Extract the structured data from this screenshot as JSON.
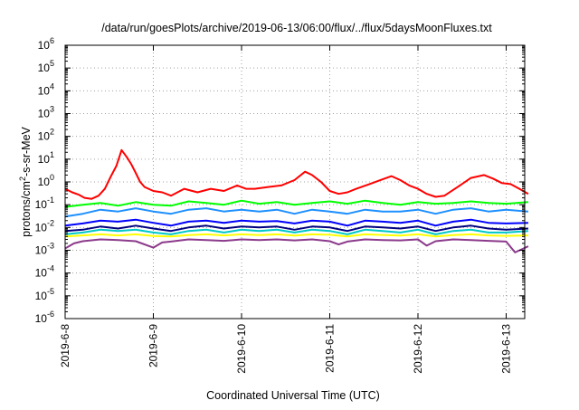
{
  "chart_data": {
    "type": "line",
    "title": "/data/run/goesPlots/archive/2019-06-13/06:00/flux/../flux/5daysMoonFluxes.txt",
    "xlabel": "Coordinated Universal Time (UTC)",
    "ylabel_parts": [
      "protons/cm",
      "2",
      "-s-sr-MeV"
    ],
    "y_scale": "log",
    "ylim": [
      1e-06,
      1000000.0
    ],
    "xlim": [
      "2019-06-08 00:00",
      "2019-06-13 06:00"
    ],
    "x_ticks": [
      "2019-6-8",
      "2019-6-9",
      "2019-6-10",
      "2019-6-11",
      "2019-6-12",
      "2019-6-13"
    ],
    "y_ticks": [
      {
        "base": "10",
        "exp": "-6"
      },
      {
        "base": "10",
        "exp": "-5"
      },
      {
        "base": "10",
        "exp": "-4"
      },
      {
        "base": "10",
        "exp": "-3"
      },
      {
        "base": "10",
        "exp": "-2"
      },
      {
        "base": "10",
        "exp": "-1"
      },
      {
        "base": "10",
        "exp": "0"
      },
      {
        "base": "10",
        "exp": "1"
      },
      {
        "base": "10",
        "exp": "2"
      },
      {
        "base": "10",
        "exp": "3"
      },
      {
        "base": "10",
        "exp": "4"
      },
      {
        "base": "10",
        "exp": "5"
      },
      {
        "base": "10",
        "exp": "6"
      }
    ],
    "grid": true,
    "legend": "none",
    "x_unit": "day (fraction since 2019-6-8 00:00 UTC)",
    "series": [
      {
        "color": "#ff0000",
        "x": [
          0.0,
          0.08,
          0.15,
          0.22,
          0.3,
          0.38,
          0.45,
          0.52,
          0.58,
          0.64,
          0.7,
          0.75,
          0.8,
          0.85,
          0.9,
          1.0,
          1.1,
          1.2,
          1.35,
          1.5,
          1.65,
          1.8,
          1.95,
          2.05,
          2.15,
          2.3,
          2.45,
          2.6,
          2.72,
          2.8,
          2.9,
          3.0,
          3.1,
          3.2,
          3.3,
          3.45,
          3.6,
          3.7,
          3.8,
          3.9,
          4.0,
          4.1,
          4.2,
          4.3,
          4.45,
          4.6,
          4.75,
          4.85,
          4.95,
          5.05,
          5.15,
          5.25
        ],
        "y": [
          0.5,
          0.35,
          0.28,
          0.2,
          0.18,
          0.25,
          0.5,
          1.8,
          5,
          25,
          12,
          6,
          2.5,
          1.0,
          0.6,
          0.4,
          0.35,
          0.25,
          0.5,
          0.35,
          0.5,
          0.4,
          0.7,
          0.5,
          0.5,
          0.6,
          0.7,
          1.2,
          2.8,
          2.0,
          1.0,
          0.4,
          0.3,
          0.35,
          0.5,
          0.8,
          1.3,
          1.8,
          1.2,
          0.7,
          0.5,
          0.3,
          0.22,
          0.25,
          0.6,
          1.5,
          2.0,
          1.4,
          0.9,
          0.8,
          0.5,
          0.3
        ]
      },
      {
        "color": "#00ff00",
        "x": [
          0.0,
          0.2,
          0.4,
          0.6,
          0.8,
          1.0,
          1.2,
          1.4,
          1.6,
          1.8,
          2.0,
          2.2,
          2.4,
          2.6,
          2.8,
          3.0,
          3.2,
          3.4,
          3.6,
          3.8,
          4.0,
          4.2,
          4.4,
          4.6,
          4.8,
          5.0,
          5.25
        ],
        "y": [
          0.08,
          0.1,
          0.12,
          0.09,
          0.13,
          0.1,
          0.09,
          0.14,
          0.12,
          0.1,
          0.15,
          0.11,
          0.13,
          0.1,
          0.12,
          0.14,
          0.11,
          0.15,
          0.12,
          0.1,
          0.13,
          0.11,
          0.12,
          0.14,
          0.12,
          0.11,
          0.13
        ]
      },
      {
        "color": "#1e90ff",
        "x": [
          0.0,
          0.2,
          0.4,
          0.6,
          0.8,
          1.0,
          1.2,
          1.4,
          1.6,
          1.8,
          2.0,
          2.2,
          2.4,
          2.6,
          2.8,
          3.0,
          3.2,
          3.4,
          3.6,
          3.8,
          4.0,
          4.2,
          4.4,
          4.6,
          4.8,
          5.0,
          5.25
        ],
        "y": [
          0.03,
          0.04,
          0.06,
          0.05,
          0.07,
          0.05,
          0.04,
          0.06,
          0.07,
          0.05,
          0.06,
          0.05,
          0.06,
          0.04,
          0.06,
          0.05,
          0.04,
          0.06,
          0.05,
          0.05,
          0.06,
          0.04,
          0.06,
          0.07,
          0.05,
          0.06,
          0.05
        ]
      },
      {
        "color": "#0000ff",
        "x": [
          0.0,
          0.2,
          0.4,
          0.6,
          0.8,
          1.0,
          1.2,
          1.4,
          1.6,
          1.8,
          2.0,
          2.2,
          2.4,
          2.6,
          2.8,
          3.0,
          3.2,
          3.4,
          3.6,
          3.8,
          4.0,
          4.2,
          4.4,
          4.6,
          4.8,
          5.0,
          5.25
        ],
        "y": [
          0.012,
          0.015,
          0.02,
          0.018,
          0.022,
          0.016,
          0.012,
          0.018,
          0.02,
          0.016,
          0.02,
          0.018,
          0.019,
          0.015,
          0.02,
          0.018,
          0.012,
          0.02,
          0.018,
          0.016,
          0.02,
          0.012,
          0.018,
          0.022,
          0.016,
          0.015,
          0.016
        ]
      },
      {
        "color": "#000080",
        "x": [
          0.0,
          0.2,
          0.4,
          0.6,
          0.8,
          1.0,
          1.2,
          1.4,
          1.6,
          1.8,
          2.0,
          2.2,
          2.4,
          2.6,
          2.8,
          3.0,
          3.2,
          3.4,
          3.6,
          3.8,
          4.0,
          4.2,
          4.4,
          4.6,
          4.8,
          5.0,
          5.25
        ],
        "y": [
          0.007,
          0.008,
          0.011,
          0.009,
          0.012,
          0.009,
          0.007,
          0.01,
          0.012,
          0.009,
          0.011,
          0.01,
          0.011,
          0.008,
          0.011,
          0.01,
          0.007,
          0.011,
          0.01,
          0.009,
          0.011,
          0.007,
          0.01,
          0.012,
          0.009,
          0.008,
          0.009
        ]
      },
      {
        "color": "#00c8c8",
        "x": [
          0.0,
          0.2,
          0.4,
          0.6,
          0.8,
          1.0,
          1.2,
          1.4,
          1.6,
          1.8,
          2.0,
          2.2,
          2.4,
          2.6,
          2.8,
          3.0,
          3.2,
          3.4,
          3.6,
          3.8,
          4.0,
          4.2,
          4.4,
          4.6,
          4.8,
          5.0,
          5.25
        ],
        "y": [
          0.005,
          0.006,
          0.008,
          0.007,
          0.008,
          0.006,
          0.005,
          0.007,
          0.008,
          0.006,
          0.008,
          0.007,
          0.008,
          0.006,
          0.008,
          0.007,
          0.005,
          0.008,
          0.007,
          0.006,
          0.008,
          0.005,
          0.007,
          0.008,
          0.006,
          0.006,
          0.007
        ]
      },
      {
        "color": "#ffff00",
        "x": [
          0.0,
          0.2,
          0.4,
          0.6,
          0.8,
          1.0,
          1.2,
          1.4,
          1.6,
          1.8,
          2.0,
          2.2,
          2.4,
          2.6,
          2.8,
          3.0,
          3.2,
          3.4,
          3.6,
          3.8,
          4.0,
          4.2,
          4.4,
          4.6,
          4.8,
          5.0,
          5.25
        ],
        "y": [
          0.004,
          0.0045,
          0.005,
          0.0045,
          0.005,
          0.0042,
          0.004,
          0.0046,
          0.005,
          0.0045,
          0.005,
          0.0046,
          0.005,
          0.0044,
          0.005,
          0.0048,
          0.004,
          0.005,
          0.0047,
          0.0044,
          0.005,
          0.004,
          0.0046,
          0.005,
          0.0045,
          0.0043,
          0.0045
        ]
      },
      {
        "color": "#8b3a8b",
        "x": [
          0.0,
          0.1,
          0.2,
          0.4,
          0.6,
          0.8,
          1.0,
          1.1,
          1.2,
          1.4,
          1.6,
          1.8,
          2.0,
          2.2,
          2.4,
          2.6,
          2.8,
          3.0,
          3.1,
          3.2,
          3.4,
          3.6,
          3.8,
          4.0,
          4.1,
          4.2,
          4.4,
          4.6,
          4.8,
          5.0,
          5.1,
          5.25
        ],
        "y": [
          0.0012,
          0.002,
          0.0025,
          0.003,
          0.0028,
          0.0025,
          0.0013,
          0.0022,
          0.0024,
          0.003,
          0.0028,
          0.0026,
          0.003,
          0.0028,
          0.003,
          0.0027,
          0.003,
          0.0025,
          0.0018,
          0.0024,
          0.003,
          0.0028,
          0.0027,
          0.003,
          0.0016,
          0.0025,
          0.003,
          0.0028,
          0.0026,
          0.0024,
          0.0008,
          0.0015
        ]
      }
    ]
  }
}
